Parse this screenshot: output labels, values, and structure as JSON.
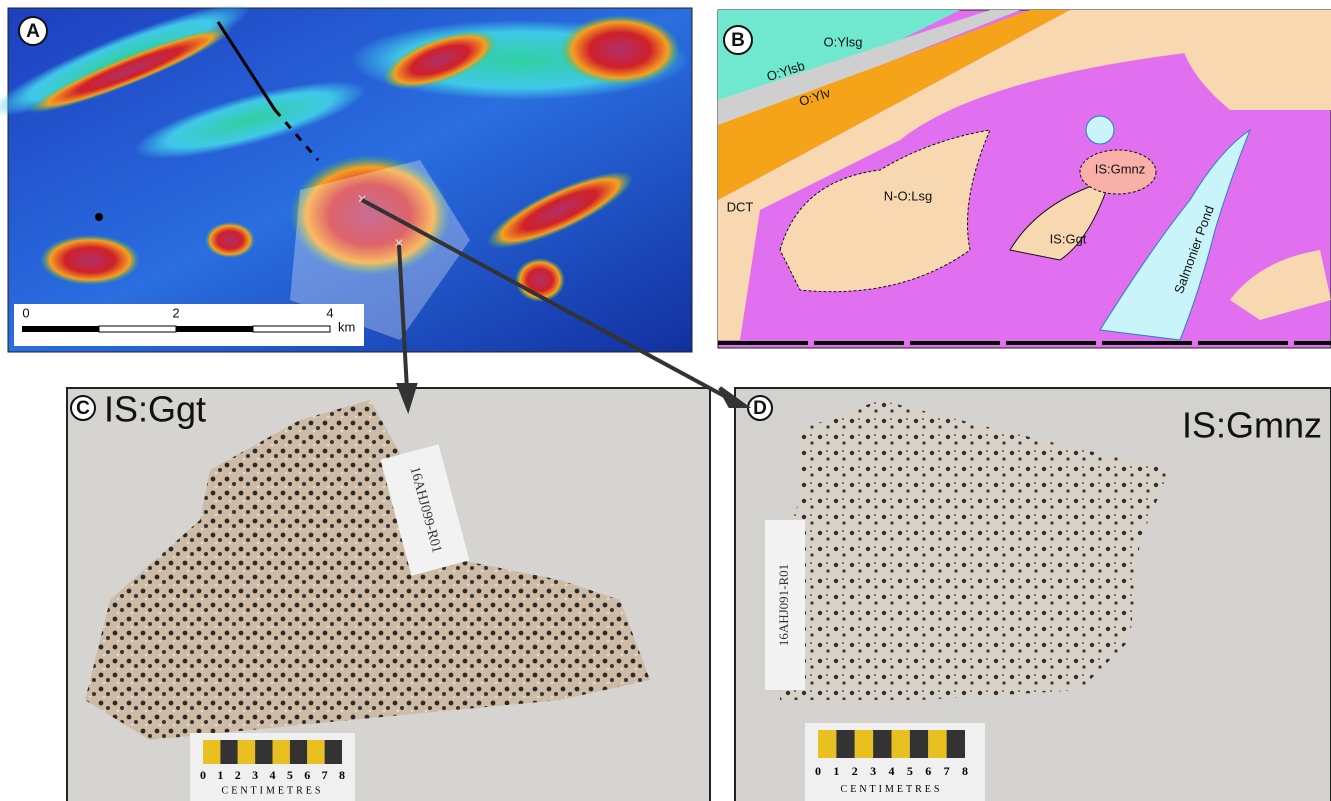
{
  "panels": [
    {
      "label": "A",
      "scale_bar": {
        "ticks": [
          0,
          2,
          4
        ],
        "unit": "km"
      }
    },
    {
      "label": "B",
      "map_labels": [
        "O:Ylsg",
        "O:Ylsb",
        "O:Ylv",
        "DCT",
        "N-O:Lsg",
        "IS:Gmnz",
        "IS:Ggt",
        "Salmonier Pond"
      ]
    },
    {
      "label": "C",
      "title": "IS:Ggt",
      "sample_tag": "16AHJ099-R01",
      "ruler": {
        "ticks": [
          0,
          1,
          2,
          3,
          4,
          5,
          6,
          7,
          8
        ],
        "unit": "CENTIMETRES"
      }
    },
    {
      "label": "D",
      "title": "IS:Gmnz",
      "sample_tag": "16AHJ091-R01",
      "ruler": {
        "ticks": [
          0,
          1,
          2,
          3,
          4,
          5,
          6,
          7,
          8
        ],
        "unit": "CENTIMETRES"
      }
    }
  ]
}
